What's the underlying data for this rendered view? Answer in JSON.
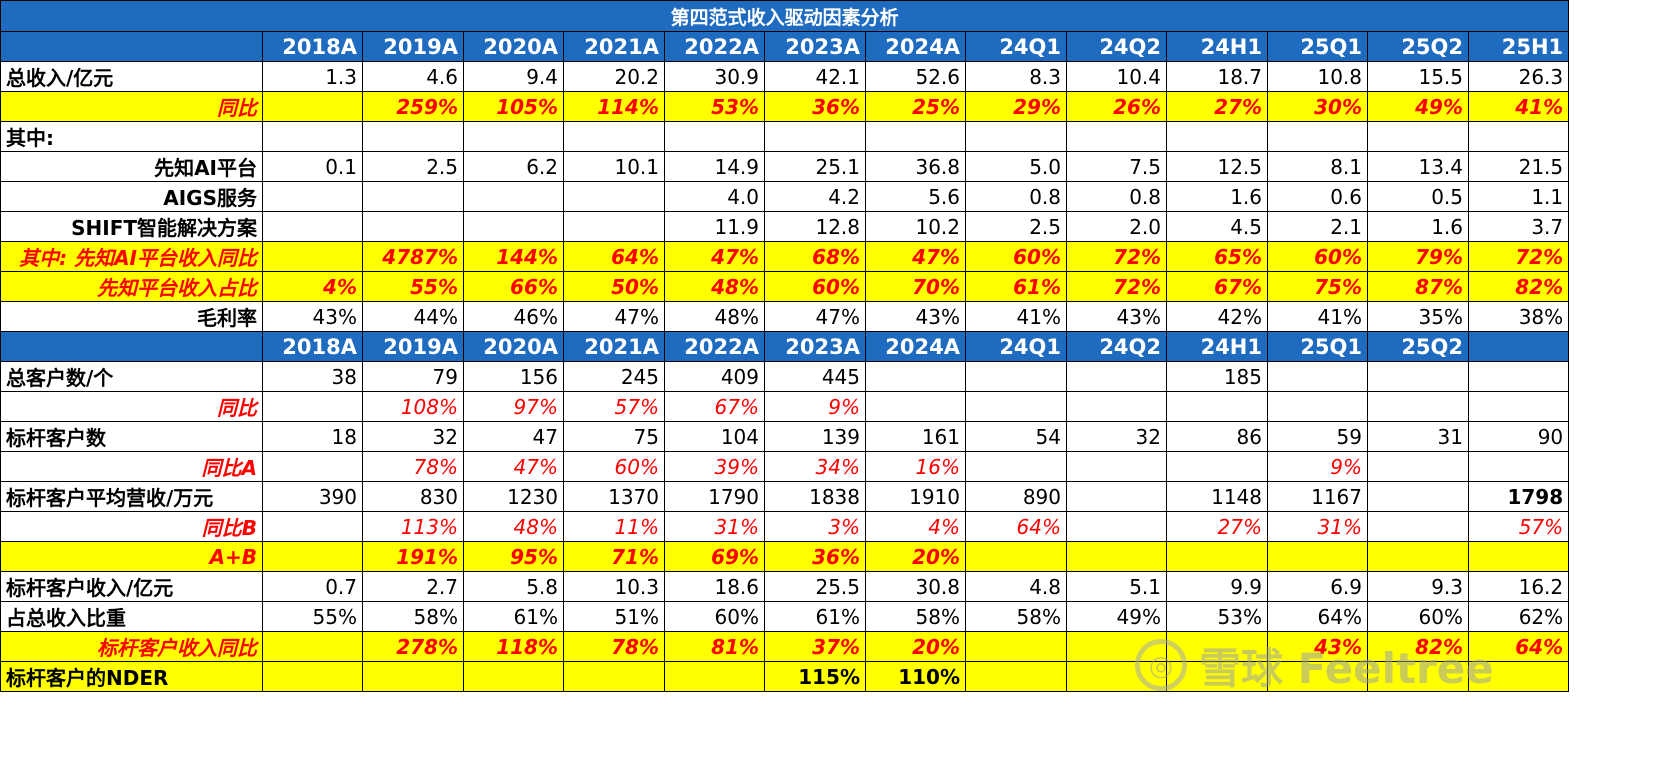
{
  "title": "第四范式收入驱动因素分析",
  "header1": [
    "",
    "2018A",
    "2019A",
    "2020A",
    "2021A",
    "2022A",
    "2023A",
    "2024A",
    "24Q1",
    "24Q2",
    "24H1",
    "25Q1",
    "25Q2",
    "25H1"
  ],
  "header2": [
    "",
    "2018A",
    "2019A",
    "2020A",
    "2021A",
    "2022A",
    "2023A",
    "2024A",
    "24Q1",
    "24Q2",
    "24H1",
    "25Q1",
    "25Q2",
    ""
  ],
  "section1": [
    {
      "label": "总收入/亿元",
      "align": "left",
      "style": "plain",
      "cells": [
        "1.3",
        "4.6",
        "9.4",
        "20.2",
        "30.9",
        "42.1",
        "52.6",
        "8.3",
        "10.4",
        "18.7",
        "10.8",
        "15.5",
        "26.3"
      ]
    },
    {
      "label": "同比",
      "align": "right",
      "style": "yellow-red",
      "cells": [
        "",
        "259%",
        "105%",
        "114%",
        "53%",
        "36%",
        "25%",
        "29%",
        "26%",
        "27%",
        "30%",
        "49%",
        "41%"
      ]
    },
    {
      "label": "其中:",
      "align": "left",
      "style": "plain",
      "cells": [
        "",
        "",
        "",
        "",
        "",
        "",
        "",
        "",
        "",
        "",
        "",
        "",
        ""
      ]
    },
    {
      "label": "先知AI平台",
      "align": "right",
      "style": "plain",
      "cells": [
        "0.1",
        "2.5",
        "6.2",
        "10.1",
        "14.9",
        "25.1",
        "36.8",
        "5.0",
        "7.5",
        "12.5",
        "8.1",
        "13.4",
        "21.5"
      ]
    },
    {
      "label": "AIGS服务",
      "align": "right",
      "style": "plain",
      "cells": [
        "",
        "",
        "",
        "",
        "4.0",
        "4.2",
        "5.6",
        "0.8",
        "0.8",
        "1.6",
        "0.6",
        "0.5",
        "1.1"
      ]
    },
    {
      "label": "SHIFT智能解决方案",
      "align": "right",
      "style": "plain",
      "cells": [
        "",
        "",
        "",
        "",
        "11.9",
        "12.8",
        "10.2",
        "2.5",
        "2.0",
        "4.5",
        "2.1",
        "1.6",
        "3.7"
      ]
    },
    {
      "label": "其中: 先知AI平台收入同比",
      "align": "right",
      "style": "yellow-red",
      "cells": [
        "",
        "4787%",
        "144%",
        "64%",
        "47%",
        "68%",
        "47%",
        "60%",
        "72%",
        "65%",
        "60%",
        "79%",
        "72%"
      ]
    },
    {
      "label": "先知平台收入占比",
      "align": "right",
      "style": "yellow-red",
      "cells": [
        "4%",
        "55%",
        "66%",
        "50%",
        "48%",
        "60%",
        "70%",
        "61%",
        "72%",
        "67%",
        "75%",
        "87%",
        "82%"
      ]
    },
    {
      "label": "毛利率",
      "align": "right",
      "style": "plain",
      "cells": [
        "43%",
        "44%",
        "46%",
        "47%",
        "48%",
        "47%",
        "43%",
        "41%",
        "43%",
        "42%",
        "41%",
        "35%",
        "38%"
      ]
    }
  ],
  "section2": [
    {
      "label": "总客户数/个",
      "align": "left",
      "style": "plain",
      "cells": [
        "38",
        "79",
        "156",
        "245",
        "409",
        "445",
        "",
        "",
        "",
        "185",
        "",
        "",
        ""
      ]
    },
    {
      "label": "同比",
      "align": "right",
      "style": "red",
      "cells": [
        "",
        "108%",
        "97%",
        "57%",
        "67%",
        "9%",
        "",
        "",
        "",
        "",
        "",
        "",
        ""
      ]
    },
    {
      "label": "标杆客户数",
      "align": "left",
      "style": "plain",
      "cells": [
        "18",
        "32",
        "47",
        "75",
        "104",
        "139",
        "161",
        "54",
        "32",
        "86",
        "59",
        "31",
        "90"
      ]
    },
    {
      "label": "同比A",
      "align": "right",
      "style": "red",
      "cells": [
        "",
        "78%",
        "47%",
        "60%",
        "39%",
        "34%",
        "16%",
        "",
        "",
        "",
        "9%",
        "",
        ""
      ]
    },
    {
      "label": "标杆客户平均营收/万元",
      "align": "left",
      "style": "plain",
      "cells": [
        "390",
        "830",
        "1230",
        "1370",
        "1790",
        "1838",
        "1910",
        "890",
        "",
        "1148",
        "1167",
        "",
        "1798"
      ]
    },
    {
      "label": "同比B",
      "align": "right",
      "style": "red",
      "cells": [
        "",
        "113%",
        "48%",
        "11%",
        "31%",
        "3%",
        "4%",
        "64%",
        "",
        "27%",
        "31%",
        "",
        "57%"
      ]
    },
    {
      "label": "A+B",
      "align": "right",
      "style": "yellow-red",
      "cells": [
        "",
        "191%",
        "95%",
        "71%",
        "69%",
        "36%",
        "20%",
        "",
        "",
        "",
        "",
        "",
        ""
      ]
    },
    {
      "label": "标杆客户收入/亿元",
      "align": "left",
      "style": "plain",
      "cells": [
        "0.7",
        "2.7",
        "5.8",
        "10.3",
        "18.6",
        "25.5",
        "30.8",
        "4.8",
        "5.1",
        "9.9",
        "6.9",
        "9.3",
        "16.2"
      ]
    },
    {
      "label": "占总收入比重",
      "align": "left",
      "style": "plain",
      "cells": [
        "55%",
        "58%",
        "61%",
        "51%",
        "60%",
        "61%",
        "58%",
        "58%",
        "49%",
        "53%",
        "64%",
        "60%",
        "62%"
      ]
    },
    {
      "label": "标杆客户收入同比",
      "align": "right",
      "style": "yellow-red",
      "cells": [
        "",
        "278%",
        "118%",
        "78%",
        "81%",
        "37%",
        "20%",
        "",
        "",
        "",
        "43%",
        "82%",
        "64%"
      ]
    },
    {
      "label": "标杆客户的NDER",
      "align": "left",
      "style": "yellow",
      "cells": [
        "",
        "",
        "",
        "",
        "",
        "115%",
        "110%",
        "",
        "",
        "",
        "",
        "",
        ""
      ]
    }
  ],
  "watermark": "雪球 Feeltree"
}
